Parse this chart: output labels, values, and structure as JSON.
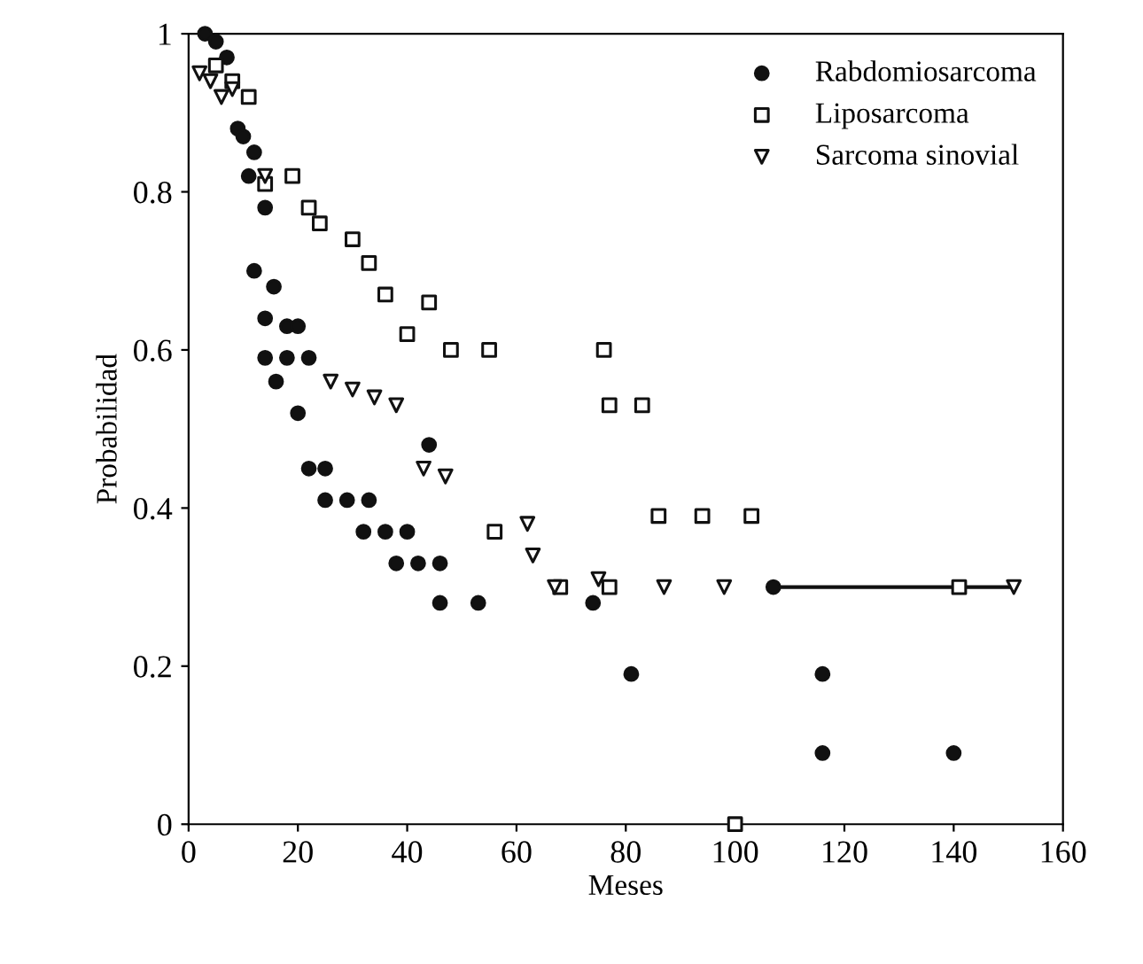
{
  "chart_data": {
    "type": "scatter",
    "xlabel": "Meses",
    "ylabel": "Probabilidad",
    "xlim": [
      0,
      160
    ],
    "ylim": [
      0,
      1
    ],
    "xticks": [
      0,
      20,
      40,
      60,
      80,
      100,
      120,
      140,
      160
    ],
    "yticks": [
      0,
      0.2,
      0.4,
      0.6,
      0.8,
      1
    ],
    "grid": false,
    "legend": "top right",
    "series": [
      {
        "name": "Rabdomiosarcoma",
        "color": "#111111",
        "marker": "circle",
        "x": [
          3,
          5,
          7,
          9,
          10,
          12,
          11,
          14,
          12,
          15.6,
          14,
          18,
          20,
          14,
          18,
          22,
          16,
          20,
          22,
          25,
          25,
          29,
          33,
          32,
          36,
          40,
          38,
          42,
          46,
          46,
          53,
          74,
          44,
          81,
          107,
          116,
          116,
          140
        ],
        "values": [
          1.0,
          0.99,
          0.97,
          0.88,
          0.87,
          0.85,
          0.82,
          0.78,
          0.7,
          0.68,
          0.64,
          0.63,
          0.63,
          0.59,
          0.59,
          0.59,
          0.56,
          0.52,
          0.45,
          0.45,
          0.41,
          0.41,
          0.41,
          0.37,
          0.37,
          0.37,
          0.33,
          0.33,
          0.33,
          0.28,
          0.28,
          0.28,
          0.48,
          0.19,
          0.3,
          0.19,
          0.09,
          0.09
        ]
      },
      {
        "name": "Liposarcoma",
        "color": "#111111",
        "marker": "square",
        "x": [
          5,
          8,
          11,
          14,
          19,
          22,
          24,
          30,
          33,
          36,
          40,
          44,
          48,
          55,
          76,
          77,
          83,
          86,
          94,
          103,
          56,
          68,
          77,
          100,
          141
        ],
        "values": [
          0.96,
          0.94,
          0.92,
          0.81,
          0.82,
          0.78,
          0.76,
          0.74,
          0.71,
          0.67,
          0.62,
          0.66,
          0.6,
          0.6,
          0.6,
          0.53,
          0.53,
          0.39,
          0.39,
          0.39,
          0.37,
          0.3,
          0.3,
          0.0,
          0.3
        ]
      },
      {
        "name": "Sarcoma sinovial",
        "color": "#111111",
        "marker": "triangle",
        "x": [
          2,
          4,
          8,
          6,
          14,
          26,
          30,
          34,
          38,
          43,
          47,
          62,
          63,
          67,
          75,
          87,
          98,
          151
        ],
        "values": [
          0.95,
          0.94,
          0.93,
          0.92,
          0.82,
          0.56,
          0.55,
          0.54,
          0.53,
          0.45,
          0.44,
          0.38,
          0.34,
          0.3,
          0.31,
          0.3,
          0.3,
          0.3
        ]
      },
      {
        "type": "line",
        "color": "#111111",
        "x": [
          107,
          151
        ],
        "values": [
          0.3,
          0.3
        ]
      }
    ]
  }
}
